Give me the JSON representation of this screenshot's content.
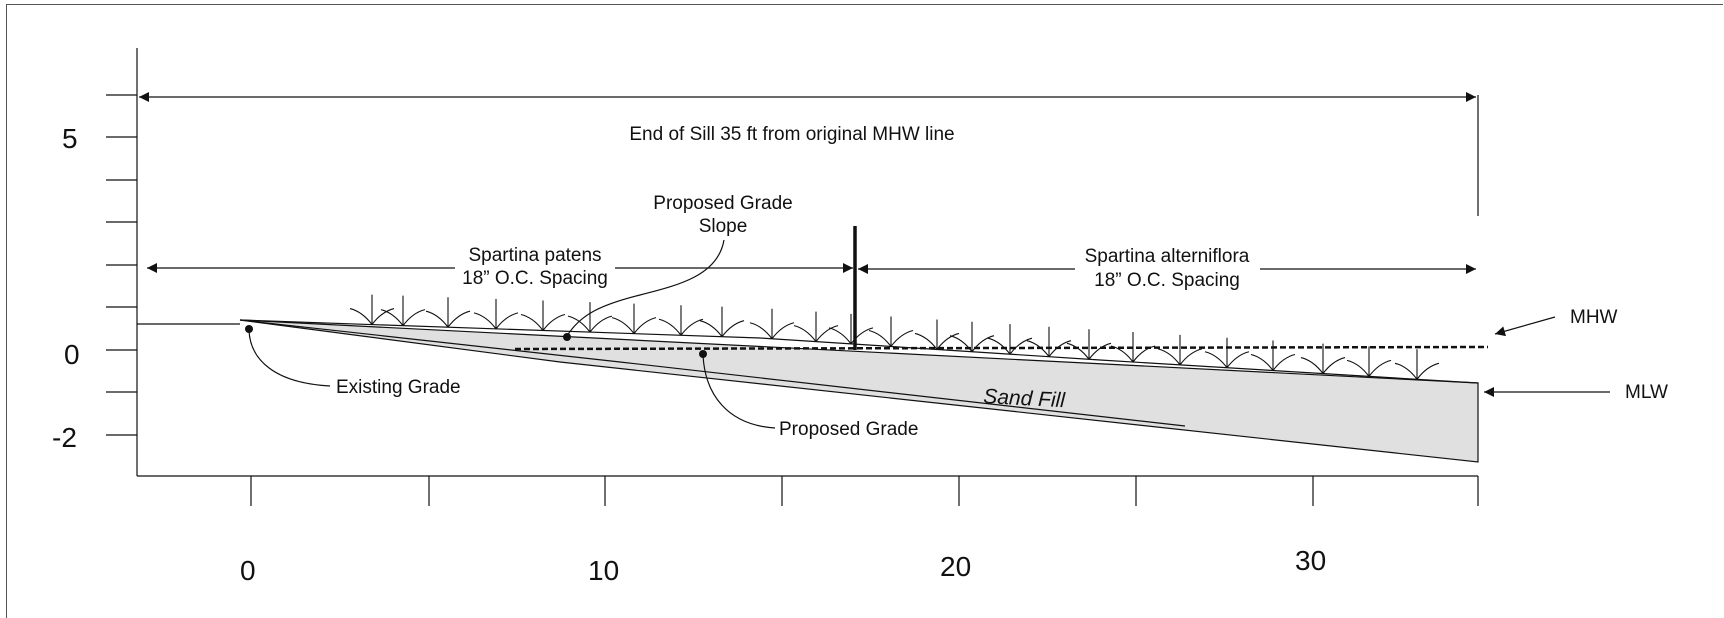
{
  "y_axis": {
    "tick_labels": [
      "5",
      "0",
      "-2"
    ]
  },
  "x_axis": {
    "tick_labels": [
      "0",
      "10",
      "20",
      "30"
    ]
  },
  "labels": {
    "sill_length": "End of Sill 35 ft from original MHW line",
    "proposed_grade_slope_1": "Proposed Grade",
    "proposed_grade_slope_2": "Slope",
    "patens_name": "Spartina patens",
    "patens_spacing": "18” O.C. Spacing",
    "alterniflora_name": "Spartina alterniflora",
    "alterniflora_spacing": "18” O.C. Spacing",
    "mhw": "MHW",
    "mlw": "MLW",
    "existing_grade": "Existing Grade",
    "proposed_grade": "Proposed Grade",
    "sand_fill": "Sand Fill"
  },
  "colors": {
    "line": "#111111",
    "fill": "#e0e0e0"
  }
}
